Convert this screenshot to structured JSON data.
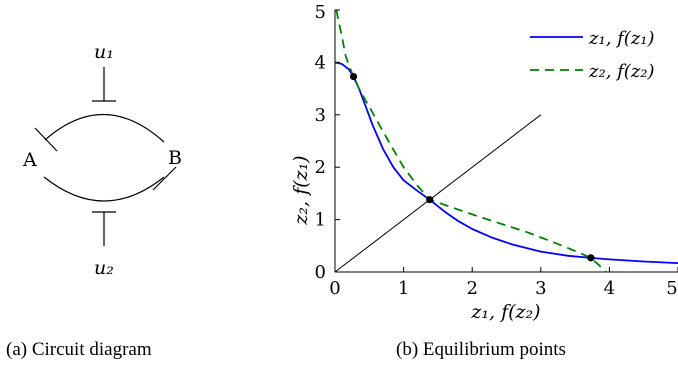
{
  "panel_a": {
    "label_u1": "u₁",
    "label_u2": "u₂",
    "label_a": "A",
    "label_b": "B",
    "caption": "(a) Circuit diagram"
  },
  "panel_b": {
    "caption": "(b) Equilibrium points"
  },
  "chart_data": {
    "type": "line",
    "title": "",
    "xlabel": "z₁, f(z₂)",
    "ylabel": "z₂, f(z₁)",
    "xlim": [
      0,
      5
    ],
    "ylim": [
      0,
      5
    ],
    "xticks": [
      "0",
      "1",
      "2",
      "3",
      "4",
      "5"
    ],
    "yticks": [
      "0",
      "1",
      "2",
      "3",
      "4",
      "5"
    ],
    "legend_position": "top-right",
    "grid": false,
    "series": [
      {
        "name": "z₁, f(z₁)",
        "color": "#0000ff",
        "style": "solid",
        "x": [
          0,
          0.1,
          0.2,
          0.27,
          0.35,
          0.45,
          0.55,
          0.7,
          0.85,
          1.0,
          1.2,
          1.38,
          1.6,
          1.8,
          2.0,
          2.3,
          2.6,
          3.0,
          3.4,
          3.73,
          4.0,
          4.5,
          5.0
        ],
        "y": [
          4.0,
          3.97,
          3.87,
          3.73,
          3.5,
          3.15,
          2.8,
          2.35,
          2.0,
          1.75,
          1.55,
          1.38,
          1.15,
          0.97,
          0.82,
          0.65,
          0.52,
          0.39,
          0.31,
          0.27,
          0.24,
          0.2,
          0.17
        ]
      },
      {
        "name": "z₂, f(z₂)",
        "color": "#008000",
        "style": "dashed",
        "x": [
          0.02,
          0.05,
          0.1,
          0.15,
          0.2,
          0.27,
          0.35,
          0.5,
          0.65,
          0.8,
          1.0,
          1.2,
          1.38,
          1.6,
          2.0,
          2.4,
          2.8,
          3.2,
          3.5,
          3.73,
          3.85,
          3.95
        ],
        "y": [
          5.0,
          4.8,
          4.5,
          4.15,
          3.95,
          3.73,
          3.5,
          3.15,
          2.8,
          2.45,
          2.0,
          1.65,
          1.38,
          1.28,
          1.1,
          0.93,
          0.76,
          0.56,
          0.4,
          0.27,
          0.13,
          0.0
        ]
      },
      {
        "name": "",
        "color": "#000000",
        "style": "solid",
        "x": [
          0,
          3
        ],
        "y": [
          0,
          3
        ]
      }
    ],
    "points": [
      {
        "x": 0.27,
        "y": 3.73
      },
      {
        "x": 1.38,
        "y": 1.38
      },
      {
        "x": 3.73,
        "y": 0.27
      }
    ]
  }
}
